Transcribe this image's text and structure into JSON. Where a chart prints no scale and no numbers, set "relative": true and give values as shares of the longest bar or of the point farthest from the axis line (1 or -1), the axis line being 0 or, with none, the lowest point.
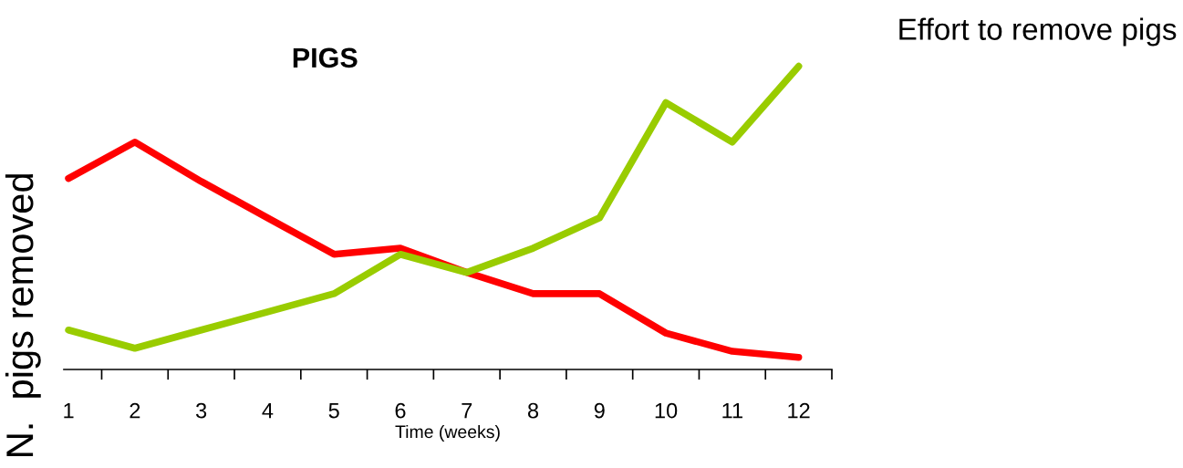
{
  "chart_data": {
    "type": "line",
    "title": "PIGS",
    "xlabel": "Time (weeks)",
    "ylabel": "N.  pigs removed",
    "relative": true,
    "categories": [
      "1",
      "2",
      "3",
      "4",
      "5",
      "6",
      "7",
      "8",
      "9",
      "10",
      "11",
      "12"
    ],
    "series": [
      {
        "color": "#ff0000",
        "values": [
          0.63,
          0.75,
          0.62,
          0.5,
          0.38,
          0.4,
          0.32,
          0.25,
          0.25,
          0.12,
          0.06,
          0.04
        ]
      },
      {
        "color": "#99cc00",
        "values": [
          0.13,
          0.07,
          0.13,
          0.19,
          0.25,
          0.38,
          0.32,
          0.4,
          0.5,
          0.88,
          0.75,
          1.0
        ]
      }
    ],
    "annotations": [
      "Effort to remove pigs"
    ],
    "marker": "none",
    "line_style": "solid"
  }
}
